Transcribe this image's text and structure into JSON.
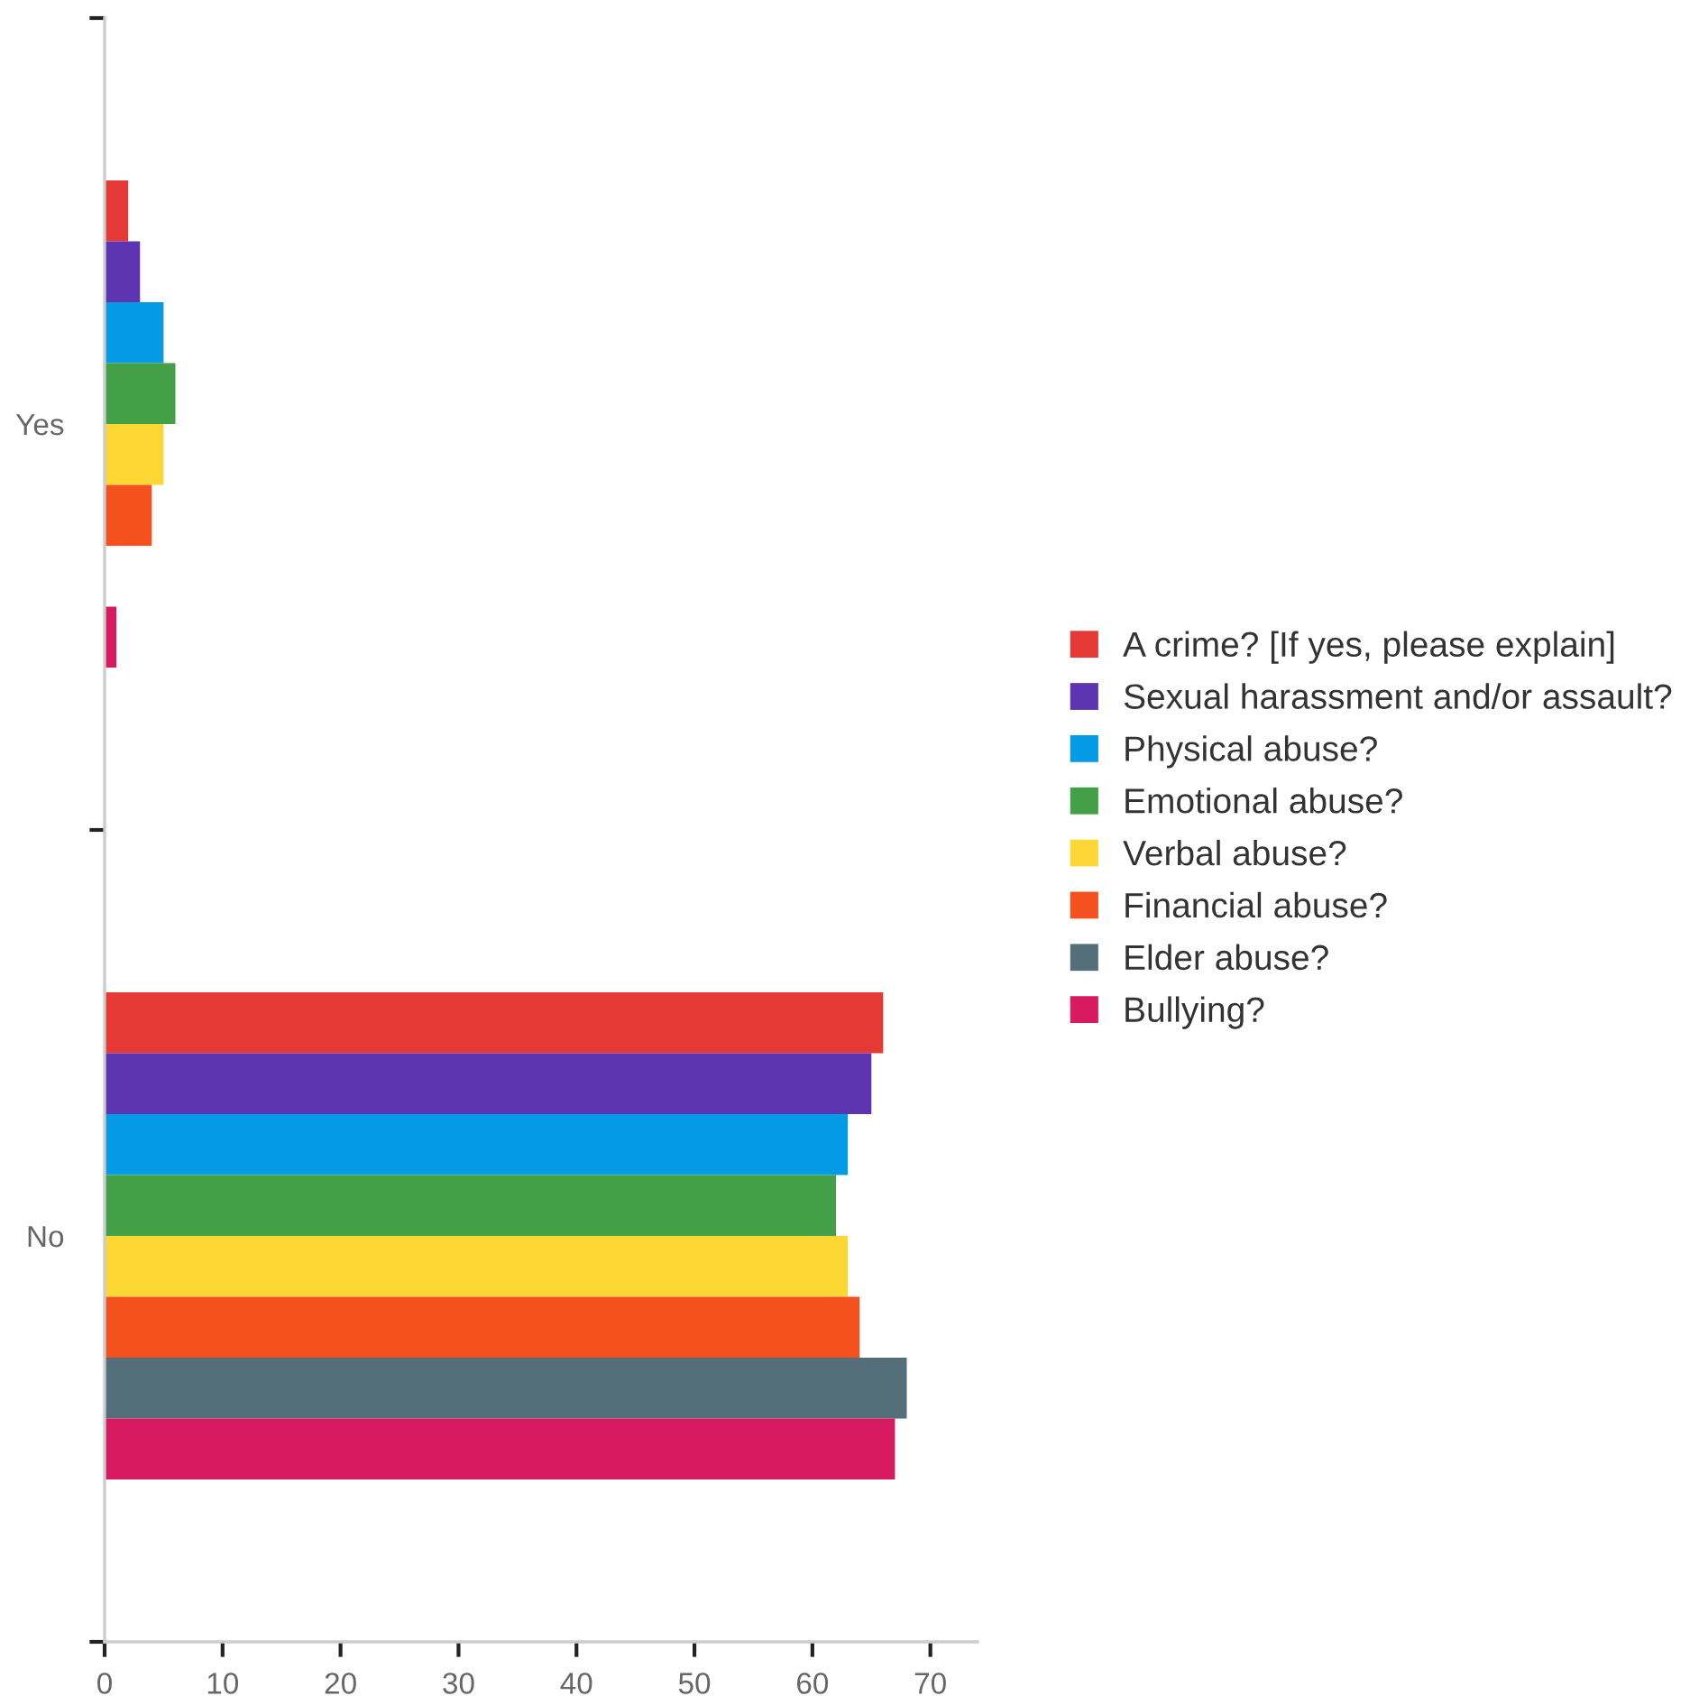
{
  "chart_data": {
    "type": "bar",
    "orientation": "horizontal",
    "categories": [
      "Yes",
      "No"
    ],
    "series": [
      {
        "name": "A crime? [If yes, please explain]",
        "color": "#e53935",
        "values": [
          2,
          66
        ]
      },
      {
        "name": "Sexual harassment and/or assault?",
        "color": "#5e35b1",
        "values": [
          3,
          65
        ]
      },
      {
        "name": "Physical abuse?",
        "color": "#039be5",
        "values": [
          5,
          63
        ]
      },
      {
        "name": "Emotional abuse?",
        "color": "#43a047",
        "values": [
          6,
          62
        ]
      },
      {
        "name": "Verbal abuse?",
        "color": "#fdd835",
        "values": [
          5,
          63
        ]
      },
      {
        "name": "Financial abuse?",
        "color": "#f4511e",
        "values": [
          4,
          64
        ]
      },
      {
        "name": "Elder abuse?",
        "color": "#546e7a",
        "values": [
          0,
          68
        ]
      },
      {
        "name": "Bullying?",
        "color": "#d81b60",
        "values": [
          1,
          67
        ]
      }
    ],
    "xlim": [
      0,
      74
    ],
    "xticks": [
      0,
      10,
      20,
      30,
      40,
      50,
      60,
      70
    ],
    "grid": false,
    "legend": "right"
  }
}
